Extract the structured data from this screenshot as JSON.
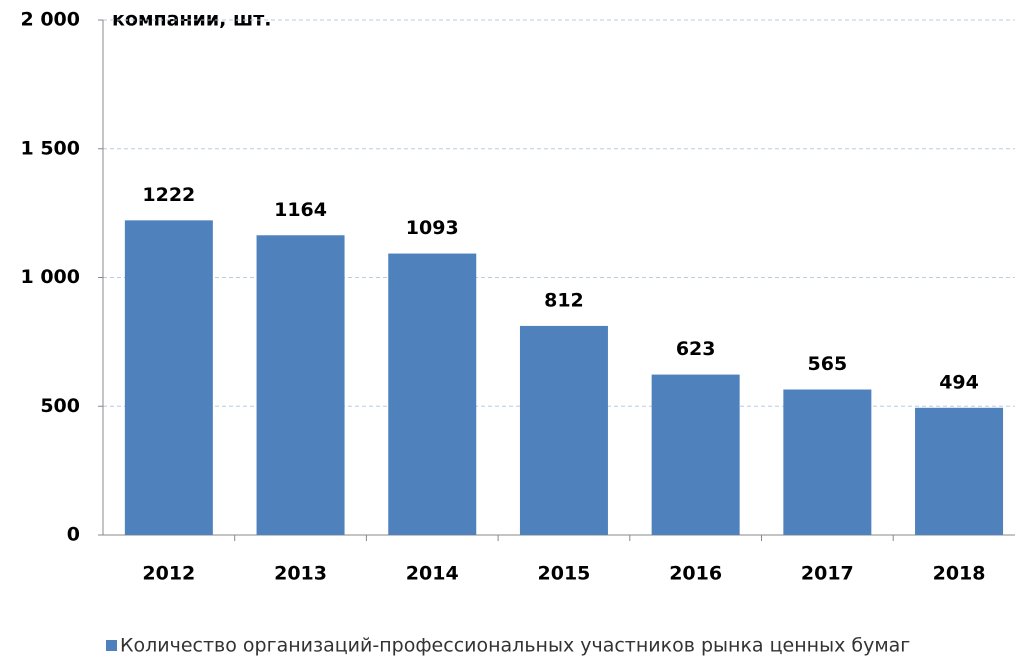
{
  "chart_data": {
    "type": "bar",
    "y_axis_label": "компании, шт.",
    "categories": [
      "2012",
      "2013",
      "2014",
      "2015",
      "2016",
      "2017",
      "2018"
    ],
    "series": [
      {
        "name": "Количество организаций-профессиональных участников рынка ценных бумаг",
        "color": "#4f81bd",
        "values": [
          1222,
          1164,
          1093,
          812,
          623,
          565,
          494
        ]
      }
    ],
    "ylim": [
      0,
      2000
    ],
    "yticks": [
      0,
      500,
      {
        "value": 1000,
        "label": "1 000"
      },
      {
        "value": 1500,
        "label": "1 500"
      },
      {
        "value": 2000,
        "label": "2 000"
      }
    ],
    "grid": true,
    "legend": "bottom"
  }
}
